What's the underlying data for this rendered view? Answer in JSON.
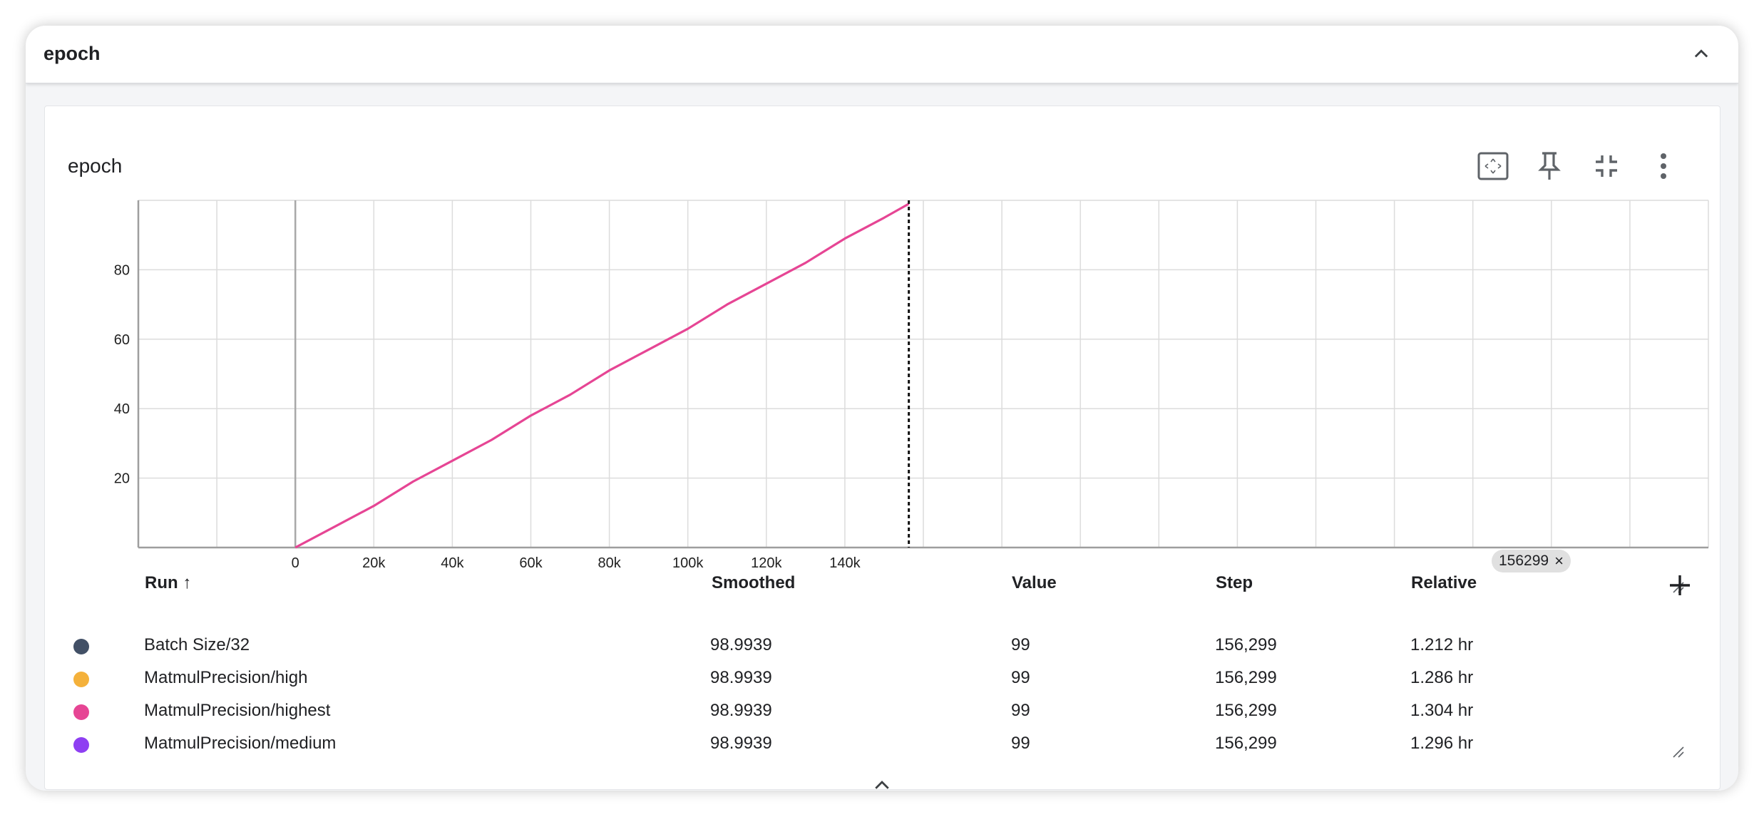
{
  "group": {
    "title": "epoch"
  },
  "card": {
    "title": "epoch"
  },
  "icons": {
    "collapse": "chevron-up-icon",
    "fit_domain": "fit-to-domain-icon",
    "pin": "pin-icon",
    "minimize": "collapse-fullscreen-icon",
    "menu": "more-vert-icon",
    "add_column": "plus-icon",
    "expand_table": "chevron-up-icon"
  },
  "chart_data": {
    "type": "line",
    "x_ticks": [
      "0",
      "20k",
      "40k",
      "60k",
      "80k",
      "100k",
      "120k",
      "140k"
    ],
    "y_ticks": [
      "20",
      "40",
      "60",
      "80"
    ],
    "xlim": [
      -40000,
      360000
    ],
    "ylim": [
      0,
      100
    ],
    "grid": true,
    "series": [
      {
        "name": "MatmulPrecision/highest",
        "color": "#e64594",
        "x": [
          0,
          10000,
          20000,
          30000,
          40000,
          50000,
          60000,
          70000,
          80000,
          90000,
          100000,
          110000,
          120000,
          130000,
          140000,
          150000,
          156299
        ],
        "y": [
          0,
          6,
          12,
          19,
          25,
          31,
          38,
          44,
          51,
          57,
          63,
          70,
          76,
          82,
          89,
          95,
          99
        ]
      }
    ],
    "cursor_step": 156299
  },
  "cursor_badge": {
    "label": "156299",
    "close": "×"
  },
  "table": {
    "headers": {
      "run": "Run ↑",
      "smoothed": "Smoothed",
      "value": "Value",
      "step": "Step",
      "relative": "Relative"
    },
    "rows": [
      {
        "color": "#425066",
        "run": "Batch Size/32",
        "smoothed": "98.9939",
        "value": "99",
        "step": "156,299",
        "relative": "1.212 hr"
      },
      {
        "color": "#f4b13b",
        "run": "MatmulPrecision/high",
        "smoothed": "98.9939",
        "value": "99",
        "step": "156,299",
        "relative": "1.286 hr"
      },
      {
        "color": "#e64594",
        "run": "MatmulPrecision/highest",
        "smoothed": "98.9939",
        "value": "99",
        "step": "156,299",
        "relative": "1.304 hr"
      },
      {
        "color": "#8e3ff2",
        "run": "MatmulPrecision/medium",
        "smoothed": "98.9939",
        "value": "99",
        "step": "156,299",
        "relative": "1.296 hr"
      }
    ]
  }
}
